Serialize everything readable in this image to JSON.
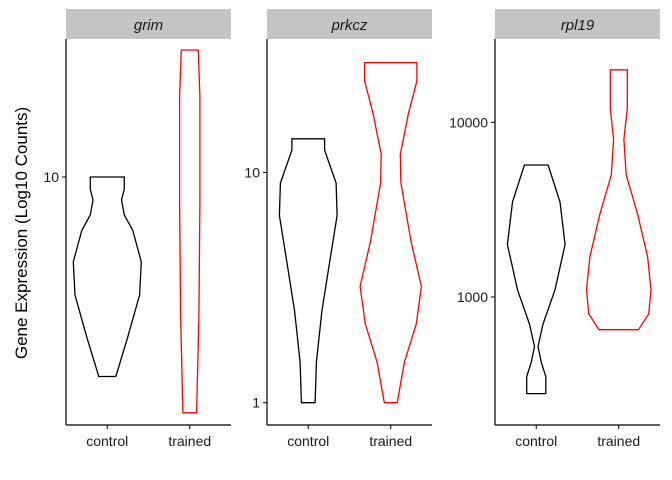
{
  "chart_data": {
    "type": "violin",
    "ylabel": "Gene Expression (Log10 Counts)",
    "categories": [
      "control",
      "trained"
    ],
    "colors": {
      "control": "#000000",
      "trained": "#ff0000",
      "strip_bg": "#c4c4c4"
    },
    "panels": [
      {
        "title": "grim",
        "y_scale": "log10",
        "ylim": [
          1.17,
          33
        ],
        "y_ticks": [
          10
        ],
        "tick_labels": [
          "10"
        ],
        "violins": [
          {
            "group": "control",
            "profile": [
              [
                1.78,
                0.25
              ],
              [
                2.5,
                0.6
              ],
              [
                3.6,
                0.95
              ],
              [
                4.8,
                1.0
              ],
              [
                6.3,
                0.75
              ],
              [
                7.2,
                0.5
              ],
              [
                8.2,
                0.42
              ],
              [
                9.0,
                0.5
              ],
              [
                10.0,
                0.5
              ]
            ]
          },
          {
            "group": "trained",
            "profile": [
              [
                1.3,
                0.2
              ],
              [
                3.0,
                0.27
              ],
              [
                8.0,
                0.3
              ],
              [
                20,
                0.3
              ],
              [
                30,
                0.25
              ]
            ]
          }
        ]
      },
      {
        "title": "prkcz",
        "y_scale": "log10",
        "ylim": [
          0.8,
          38
        ],
        "y_ticks": [
          1,
          10
        ],
        "tick_labels": [
          "1",
          "10"
        ],
        "violins": [
          {
            "group": "control",
            "profile": [
              [
                1.0,
                0.2
              ],
              [
                1.5,
                0.24
              ],
              [
                2.5,
                0.4
              ],
              [
                4.0,
                0.62
              ],
              [
                6.5,
                0.85
              ],
              [
                9.0,
                0.82
              ],
              [
                12.5,
                0.48
              ],
              [
                14.0,
                0.48
              ]
            ]
          },
          {
            "group": "trained",
            "profile": [
              [
                1.0,
                0.19
              ],
              [
                1.5,
                0.4
              ],
              [
                2.2,
                0.75
              ],
              [
                3.2,
                0.9
              ],
              [
                5.0,
                0.6
              ],
              [
                9.0,
                0.3
              ],
              [
                12.0,
                0.28
              ],
              [
                18.0,
                0.52
              ],
              [
                25.0,
                0.77
              ],
              [
                30.0,
                0.77
              ]
            ]
          }
        ]
      },
      {
        "title": "rpl19",
        "y_scale": "log10",
        "ylim": [
          185,
          30000
        ],
        "y_ticks": [
          1000,
          10000
        ],
        "tick_labels": [
          "1000",
          "10000"
        ],
        "violins": [
          {
            "group": "control",
            "profile": [
              [
                280,
                0.28
              ],
              [
                350,
                0.28
              ],
              [
                420,
                0.15
              ],
              [
                520,
                0.05
              ],
              [
                700,
                0.2
              ],
              [
                1100,
                0.55
              ],
              [
                2000,
                0.85
              ],
              [
                3500,
                0.7
              ],
              [
                5700,
                0.35
              ]
            ]
          },
          {
            "group": "trained",
            "profile": [
              [
                650,
                0.58
              ],
              [
                800,
                0.88
              ],
              [
                1100,
                0.95
              ],
              [
                1700,
                0.85
              ],
              [
                3000,
                0.55
              ],
              [
                5000,
                0.22
              ],
              [
                8000,
                0.15
              ],
              [
                12000,
                0.25
              ],
              [
                20000,
                0.25
              ]
            ]
          }
        ]
      }
    ]
  }
}
